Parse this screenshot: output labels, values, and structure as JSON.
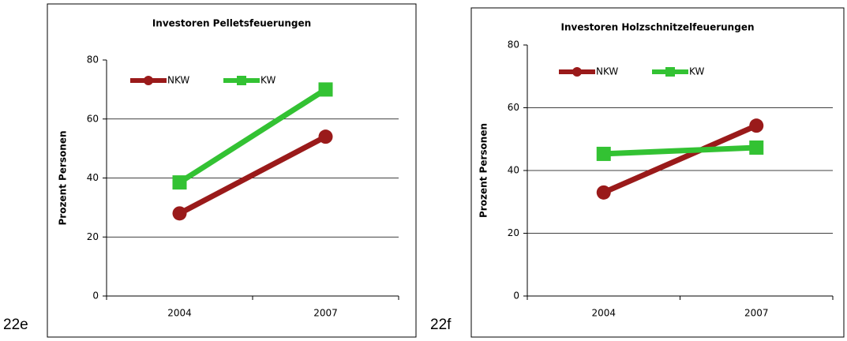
{
  "chart_data": [
    {
      "type": "line",
      "figure_label": "22e",
      "title": "Investoren Pelletsfeuerungen",
      "y_label": "Prozent Personen",
      "categories": [
        "2004",
        "2007"
      ],
      "series": [
        {
          "name": "NKW",
          "color": "#9a1a1a",
          "marker": "circle",
          "values": [
            28,
            54
          ]
        },
        {
          "name": "KW",
          "color": "#33c233",
          "marker": "square",
          "values": [
            38.5,
            70
          ]
        }
      ],
      "ylim": [
        0,
        80
      ],
      "yticks": [
        0,
        20,
        40,
        60,
        80
      ],
      "grid": true,
      "legend": "top-left"
    },
    {
      "type": "line",
      "figure_label": "22f",
      "title": "Investoren Holzschnitzelfeuerungen",
      "y_label": "Prozent Personen",
      "categories": [
        "2004",
        "2007"
      ],
      "series": [
        {
          "name": "NKW",
          "color": "#9a1a1a",
          "marker": "circle",
          "values": [
            33,
            54.3
          ]
        },
        {
          "name": "KW",
          "color": "#33c233",
          "marker": "square",
          "values": [
            45.3,
            47.3
          ]
        }
      ],
      "ylim": [
        0,
        80
      ],
      "yticks": [
        0,
        20,
        40,
        60,
        80
      ],
      "grid": true,
      "legend": "top-left"
    }
  ]
}
